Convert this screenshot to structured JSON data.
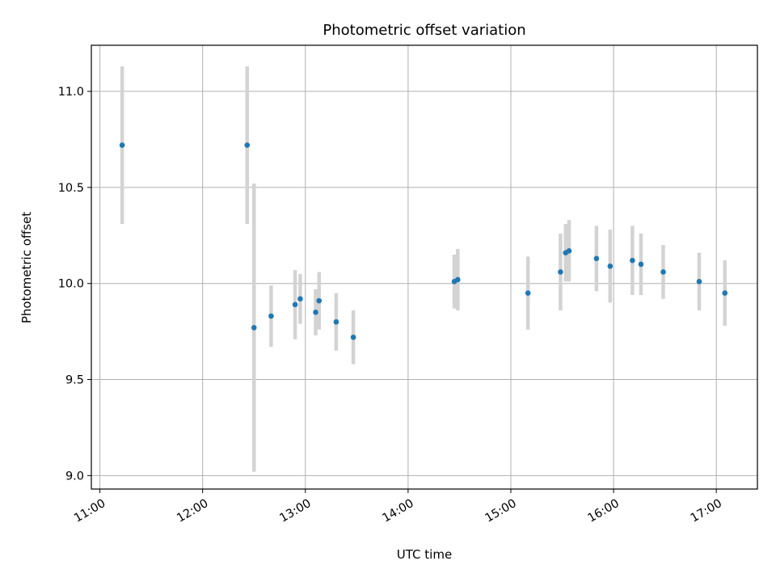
{
  "chart_data": {
    "type": "scatter",
    "title": "Photometric offset variation",
    "xlabel": "UTC time",
    "ylabel": "Photometric offset",
    "x_ticks": [
      "11:00",
      "12:00",
      "13:00",
      "14:00",
      "15:00",
      "16:00",
      "17:00"
    ],
    "y_ticks": [
      "9.0",
      "9.5",
      "10.0",
      "10.5",
      "11.0"
    ],
    "xlim": [
      "10:55",
      "17:24"
    ],
    "ylim": [
      8.93,
      11.24
    ],
    "grid": true,
    "error_bars": true,
    "colors": {
      "point": "#1f77b4",
      "error_bar": "#d3d3d3",
      "grid": "#b0b0b0"
    },
    "points": [
      {
        "x": "11:13",
        "y": 10.72,
        "err": 0.41
      },
      {
        "x": "12:26",
        "y": 10.72,
        "err": 0.41
      },
      {
        "x": "12:30",
        "y": 9.77,
        "err": 0.75
      },
      {
        "x": "12:40",
        "y": 9.83,
        "err": 0.16
      },
      {
        "x": "12:54",
        "y": 9.89,
        "err": 0.18
      },
      {
        "x": "12:57",
        "y": 9.92,
        "err": 0.13
      },
      {
        "x": "13:06",
        "y": 9.85,
        "err": 0.12
      },
      {
        "x": "13:08",
        "y": 9.91,
        "err": 0.15
      },
      {
        "x": "13:18",
        "y": 9.8,
        "err": 0.15
      },
      {
        "x": "13:28",
        "y": 9.72,
        "err": 0.14
      },
      {
        "x": "14:27",
        "y": 10.01,
        "err": 0.14
      },
      {
        "x": "14:29",
        "y": 10.02,
        "err": 0.16
      },
      {
        "x": "15:10",
        "y": 9.95,
        "err": 0.19
      },
      {
        "x": "15:29",
        "y": 10.06,
        "err": 0.2
      },
      {
        "x": "15:32",
        "y": 10.16,
        "err": 0.15
      },
      {
        "x": "15:34",
        "y": 10.17,
        "err": 0.16
      },
      {
        "x": "15:50",
        "y": 10.13,
        "err": 0.17
      },
      {
        "x": "15:58",
        "y": 10.09,
        "err": 0.19
      },
      {
        "x": "16:11",
        "y": 10.12,
        "err": 0.18
      },
      {
        "x": "16:16",
        "y": 10.1,
        "err": 0.16
      },
      {
        "x": "16:29",
        "y": 10.06,
        "err": 0.14
      },
      {
        "x": "16:50",
        "y": 10.01,
        "err": 0.15
      },
      {
        "x": "17:05",
        "y": 9.95,
        "err": 0.17
      }
    ]
  }
}
